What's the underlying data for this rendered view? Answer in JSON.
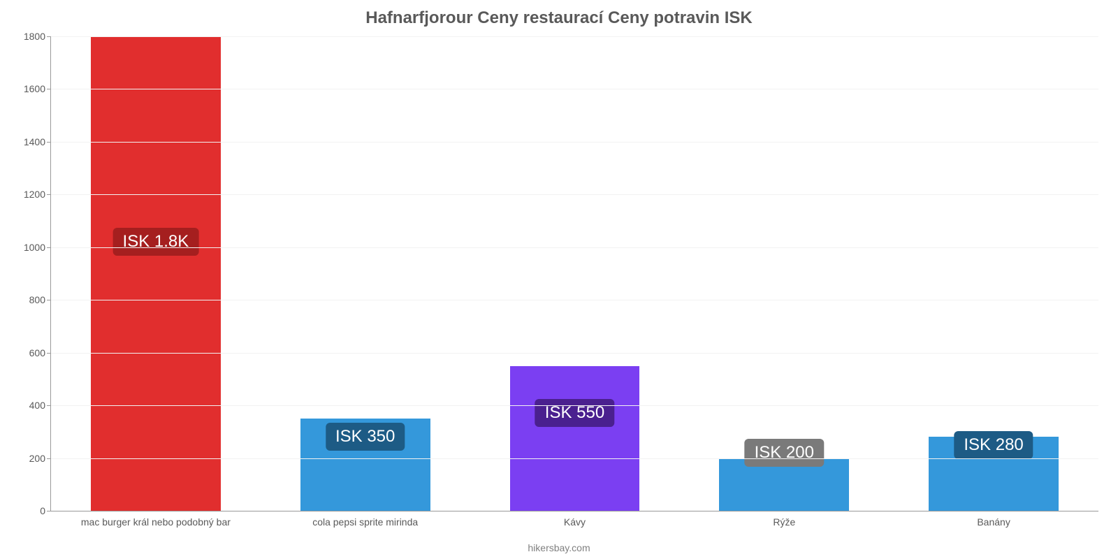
{
  "chart": {
    "type": "bar",
    "title": "Hafnarfjorour Ceny restaurací Ceny potravin ISK",
    "title_fontsize": 24,
    "title_color": "#595959",
    "footer": "hikersbay.com",
    "footer_fontsize": 14,
    "footer_color": "#808080",
    "background_color": "#ffffff",
    "grid_color": "#f2f2f2",
    "axis_color": "#999999",
    "tick_label_color": "#595959",
    "tick_label_fontsize": 14,
    "x_label_fontsize": 14,
    "ylim": [
      0,
      1800
    ],
    "ytick_step": 200,
    "yticks": [
      0,
      200,
      400,
      600,
      800,
      1000,
      1200,
      1400,
      1600,
      1800
    ],
    "bar_width": 0.62,
    "value_badge_fontsize": 24,
    "value_badge_radius": 6,
    "value_badge_text_color": "#ffffff",
    "categories": [
      "mac burger král nebo podobný bar",
      "cola pepsi sprite mirinda",
      "Kávy",
      "Rýže",
      "Banány"
    ],
    "values": [
      1800,
      350,
      550,
      200,
      280
    ],
    "value_labels": [
      "ISK 1.8K",
      "ISK 350",
      "ISK 550",
      "ISK 200",
      "ISK 280"
    ],
    "bar_colors": [
      "#e12e2e",
      "#3498db",
      "#7b3ff2",
      "#3498db",
      "#3498db"
    ],
    "badge_colors": [
      "#a51f1f",
      "#1d5b85",
      "#4a208f",
      "#7a7a7a",
      "#1d5b85"
    ],
    "badge_y_values": [
      1020,
      280,
      370,
      220,
      250
    ]
  }
}
